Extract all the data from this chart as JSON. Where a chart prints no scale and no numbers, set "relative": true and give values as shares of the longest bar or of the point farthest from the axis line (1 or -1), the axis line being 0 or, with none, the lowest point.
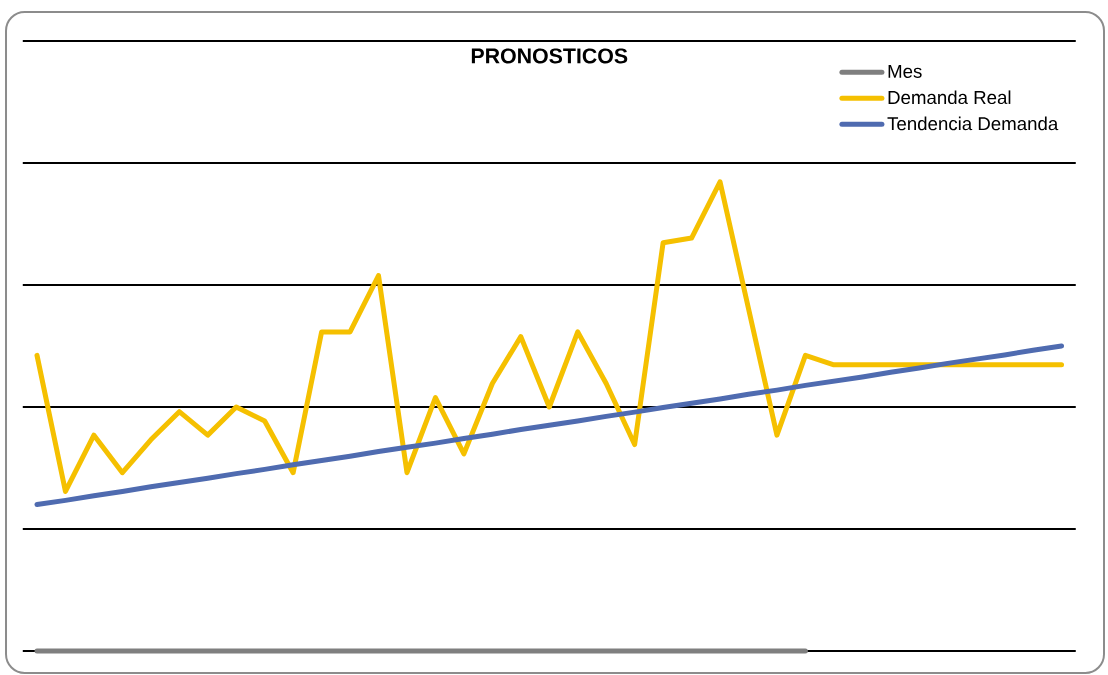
{
  "chart_data": {
    "type": "line",
    "title": "PRONOSTICOS",
    "relative": true,
    "grid": "y",
    "legend": "top right",
    "categories": [
      null,
      null,
      null,
      null,
      null,
      null,
      null,
      null,
      null,
      null,
      null,
      null,
      null,
      null,
      null,
      null,
      null,
      null,
      null,
      null,
      null,
      null,
      null,
      null,
      null,
      null,
      null,
      null,
      null,
      null,
      null,
      null,
      null,
      null,
      null,
      null,
      null
    ],
    "series": [
      {
        "name": "Mes",
        "color": "#7f7f7f",
        "values": [
          0,
          0,
          0,
          0,
          0,
          0,
          0,
          0,
          0,
          0,
          0,
          0,
          0,
          0,
          0,
          0,
          0,
          0,
          0,
          0,
          0,
          0,
          0,
          0,
          0,
          0,
          0,
          0,
          null,
          null,
          null,
          null,
          null,
          null,
          null,
          null,
          null
        ]
      },
      {
        "name": "Demanda Real",
        "color": "#f5c000",
        "values": [
          0.63,
          0.34,
          0.46,
          0.38,
          0.45,
          0.51,
          0.46,
          0.52,
          0.49,
          0.38,
          0.68,
          0.68,
          0.8,
          0.38,
          0.54,
          0.42,
          0.57,
          0.67,
          0.52,
          0.68,
          0.57,
          0.44,
          0.87,
          0.88,
          1.0,
          0.73,
          0.46,
          0.63,
          0.61,
          0.61,
          0.61,
          0.61,
          0.61,
          0.61,
          0.61,
          0.61,
          0.61
        ]
      },
      {
        "name": "Tendencia Demanda",
        "color": "#4f6bb0",
        "values": [
          0.312,
          0.321,
          0.331,
          0.34,
          0.35,
          0.359,
          0.368,
          0.378,
          0.387,
          0.397,
          0.406,
          0.415,
          0.425,
          0.434,
          0.443,
          0.453,
          0.462,
          0.472,
          0.481,
          0.49,
          0.5,
          0.509,
          0.519,
          0.528,
          0.537,
          0.547,
          0.556,
          0.566,
          0.575,
          0.584,
          0.594,
          0.603,
          0.613,
          0.622,
          0.631,
          0.641,
          0.65
        ]
      }
    ]
  }
}
